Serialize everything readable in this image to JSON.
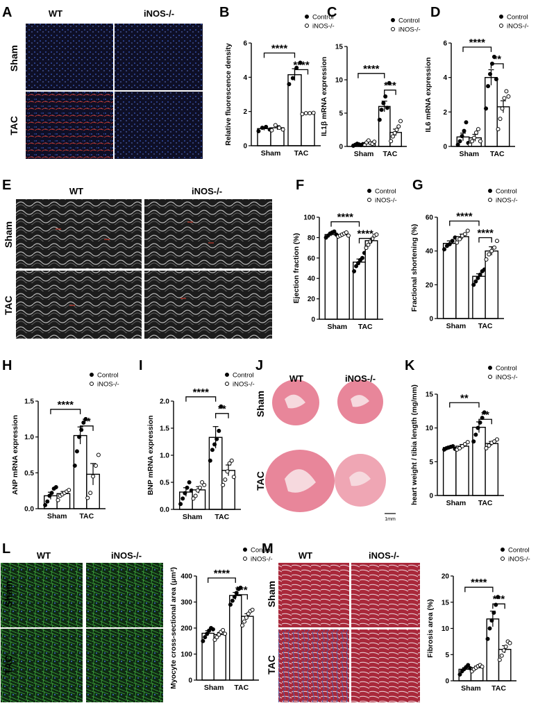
{
  "panels": [
    {
      "label": "A",
      "kind": "image"
    },
    {
      "label": "B",
      "kind": "chart"
    },
    {
      "label": "C",
      "kind": "chart"
    },
    {
      "label": "D",
      "kind": "chart"
    },
    {
      "label": "E",
      "kind": "image"
    },
    {
      "label": "F",
      "kind": "chart"
    },
    {
      "label": "G",
      "kind": "chart"
    },
    {
      "label": "H",
      "kind": "chart"
    },
    {
      "label": "I",
      "kind": "chart"
    },
    {
      "label": "J",
      "kind": "image"
    },
    {
      "label": "K",
      "kind": "chart"
    },
    {
      "label": "L",
      "kind": "image+chart"
    },
    {
      "label": "M",
      "kind": "image+chart"
    }
  ],
  "legend": {
    "control": "Control",
    "knockout": "iNOS-/-"
  },
  "image_panels": {
    "A": {
      "columns": [
        "WT",
        "iNOS-/-"
      ],
      "rows": [
        "Sham",
        "TAC"
      ],
      "style": "immunofluorescence",
      "colors": [
        "#0e0f26",
        "#3a5fd0",
        "#c2352a"
      ]
    },
    "E": {
      "columns": [
        "WT",
        "iNOS-/-"
      ],
      "rows": [
        "Sham",
        "TAC"
      ],
      "style": "echocardiography-mmode",
      "colors": [
        "#1a1a1a",
        "#bdbdbd",
        "#c0392b"
      ]
    },
    "J": {
      "columns": [
        "WT",
        "iNOS-/-"
      ],
      "rows": [
        "Sham",
        "TAC"
      ],
      "style": "heart-cross-section",
      "scale_bar": "1mm",
      "colors": [
        "#e8869a",
        "#f6d9de"
      ]
    },
    "L": {
      "columns": [
        "WT",
        "iNOS-/-"
      ],
      "rows": [
        "Sham",
        "TAC"
      ],
      "style": "wga-staining",
      "colors": [
        "#0f2a12",
        "#3fae3f",
        "#3b6fd6"
      ]
    },
    "M": {
      "columns": [
        "WT",
        "iNOS-/-"
      ],
      "rows": [
        "Sham",
        "TAC"
      ],
      "style": "masson-trichrome",
      "colors": [
        "#a9283a",
        "#e7c8cf",
        "#4a63b0"
      ]
    }
  },
  "chart_data": [
    {
      "panel": "B",
      "type": "bar",
      "categories": [
        "Sham",
        "TAC"
      ],
      "ylabel": "Relative fluorescence density",
      "ylim": [
        0,
        6
      ],
      "yticks": [
        0,
        2,
        4,
        6
      ],
      "grid": false,
      "legend_position": "top-right",
      "series": [
        {
          "name": "Control",
          "values": [
            1.0,
            4.15
          ],
          "err": [
            0.1,
            0.35
          ],
          "points": [
            [
              0.85,
              1.05,
              1.1,
              0.95
            ],
            [
              3.6,
              3.95,
              4.55,
              4.85
            ]
          ]
        },
        {
          "name": "iNOS-/-",
          "values": [
            1.05,
            1.9
          ],
          "err": [
            0.12,
            0.04
          ],
          "points": [
            [
              0.9,
              1.2,
              1.05,
              0.95
            ],
            [
              1.85,
              1.9,
              1.9,
              1.92
            ]
          ]
        }
      ],
      "significance": [
        {
          "from": [
            0,
            0
          ],
          "to": [
            1,
            0
          ],
          "label": "****"
        },
        {
          "from": [
            1,
            0
          ],
          "to": [
            1,
            1
          ],
          "label": "****"
        }
      ]
    },
    {
      "panel": "C",
      "type": "bar",
      "categories": [
        "Sham",
        "TAC"
      ],
      "ylabel": "IL1β mRNA expression",
      "ylim": [
        0,
        15
      ],
      "yticks": [
        0,
        5,
        10,
        15
      ],
      "grid": false,
      "legend_position": "top-right",
      "series": [
        {
          "name": "Control",
          "values": [
            0.3,
            6.0
          ],
          "err": [
            0.08,
            0.8
          ],
          "points": [
            [
              0.1,
              0.25,
              0.4,
              0.3,
              0.2,
              0.35
            ],
            [
              4.0,
              5.5,
              6.5,
              7.5,
              5.8,
              9.5
            ]
          ]
        },
        {
          "name": "iNOS-/-",
          "values": [
            0.55,
            2.1
          ],
          "err": [
            0.15,
            0.5
          ],
          "points": [
            [
              0.2,
              0.6,
              0.9,
              0.5,
              0.4,
              0.7
            ],
            [
              0.8,
              1.5,
              2.0,
              2.5,
              3.0,
              3.8
            ]
          ]
        }
      ],
      "significance": [
        {
          "from": [
            0,
            0
          ],
          "to": [
            1,
            0
          ],
          "label": "****"
        },
        {
          "from": [
            1,
            0
          ],
          "to": [
            1,
            1
          ],
          "label": "***"
        }
      ]
    },
    {
      "panel": "D",
      "type": "bar",
      "categories": [
        "Sham",
        "TAC"
      ],
      "ylabel": "IL6 mRNA expression",
      "ylim": [
        0,
        6
      ],
      "yticks": [
        0,
        2,
        4,
        6
      ],
      "grid": false,
      "legend_position": "top-right",
      "series": [
        {
          "name": "Control",
          "values": [
            0.55,
            4.0
          ],
          "err": [
            0.22,
            0.45
          ],
          "points": [
            [
              0.1,
              0.3,
              0.6,
              0.9,
              1.4,
              0.2
            ],
            [
              2.2,
              3.5,
              4.2,
              4.8,
              5.2,
              3.9
            ]
          ]
        },
        {
          "name": "iNOS-/-",
          "values": [
            0.5,
            2.3
          ],
          "err": [
            0.2,
            0.35
          ],
          "points": [
            [
              0.1,
              0.3,
              0.5,
              0.8,
              1.0,
              0.3
            ],
            [
              1.0,
              1.6,
              2.2,
              2.8,
              3.2,
              2.9
            ]
          ]
        }
      ],
      "significance": [
        {
          "from": [
            0,
            0
          ],
          "to": [
            1,
            0
          ],
          "label": "****"
        },
        {
          "from": [
            1,
            0
          ],
          "to": [
            1,
            1
          ],
          "label": "**"
        }
      ]
    },
    {
      "panel": "F",
      "type": "bar",
      "categories": [
        "Sham",
        "TAC"
      ],
      "ylabel": "Ejection fraction (%)",
      "ylim": [
        0,
        100
      ],
      "yticks": [
        0,
        20,
        40,
        60,
        80,
        100
      ],
      "grid": false,
      "legend_position": "top-right",
      "series": [
        {
          "name": "Control",
          "values": [
            83,
            56
          ],
          "err": [
            1.5,
            3
          ],
          "points": [
            [
              80,
              82,
              84,
              85,
              86,
              83
            ],
            [
              47,
              52,
              55,
              58,
              60,
              65
            ]
          ]
        },
        {
          "name": "iNOS-/-",
          "values": [
            83,
            77
          ],
          "err": [
            1.2,
            2
          ],
          "points": [
            [
              81,
              82,
              83,
              84,
              85,
              82
            ],
            [
              70,
              73,
              76,
              79,
              82,
              83
            ]
          ]
        }
      ],
      "significance": [
        {
          "from": [
            0,
            0
          ],
          "to": [
            1,
            0
          ],
          "label": "****"
        },
        {
          "from": [
            1,
            0
          ],
          "to": [
            1,
            1
          ],
          "label": "****"
        }
      ]
    },
    {
      "panel": "G",
      "type": "bar",
      "categories": [
        "Sham",
        "TAC"
      ],
      "ylabel": "Fractional shortening (%)",
      "ylim": [
        0,
        60
      ],
      "yticks": [
        0,
        20,
        40,
        60
      ],
      "grid": false,
      "legend_position": "top-right",
      "series": [
        {
          "name": "Control",
          "values": [
            44.5,
            25
          ],
          "err": [
            1.5,
            1.5
          ],
          "points": [
            [
              41,
              43,
              44,
              46,
              48
            ],
            [
              20,
              22,
              24,
              26,
              28,
              29
            ]
          ]
        },
        {
          "name": "iNOS-/-",
          "values": [
            48.5,
            40
          ],
          "err": [
            1.5,
            2.5
          ],
          "points": [
            [
              45,
              47,
              49,
              50,
              52
            ],
            [
              35,
              38,
              40,
              42,
              46
            ]
          ]
        }
      ],
      "significance": [
        {
          "from": [
            0,
            0
          ],
          "to": [
            1,
            0
          ],
          "label": "****"
        },
        {
          "from": [
            1,
            0
          ],
          "to": [
            1,
            1
          ],
          "label": "****"
        }
      ]
    },
    {
      "panel": "H",
      "type": "bar",
      "categories": [
        "Sham",
        "TAC"
      ],
      "ylabel": "ANP mRNA expression",
      "ylim": [
        0,
        1.5
      ],
      "yticks": [
        0,
        0.5,
        1.0,
        1.5
      ],
      "ytick_labels": [
        "0.0",
        "0.5",
        "1.0",
        "1.5"
      ],
      "grid": false,
      "legend_position": "top-right",
      "series": [
        {
          "name": "Control",
          "values": [
            0.18,
            1.02
          ],
          "err": [
            0.05,
            0.12
          ],
          "points": [
            [
              0.05,
              0.1,
              0.18,
              0.22,
              0.28,
              0.3
            ],
            [
              0.6,
              0.8,
              1.0,
              1.1,
              1.2,
              1.25
            ]
          ]
        },
        {
          "name": "iNOS-/-",
          "values": [
            0.21,
            0.48
          ],
          "err": [
            0.03,
            0.15
          ],
          "points": [
            [
              0.12,
              0.18,
              0.2,
              0.22,
              0.24,
              0.26
            ],
            [
              0.15,
              0.22,
              0.45,
              0.6,
              0.75
            ]
          ]
        }
      ],
      "significance": [
        {
          "from": [
            0,
            0
          ],
          "to": [
            1,
            0
          ],
          "label": "****"
        },
        {
          "from": [
            1,
            0
          ],
          "to": [
            1,
            1
          ],
          "label": "**"
        }
      ]
    },
    {
      "panel": "I",
      "type": "bar",
      "categories": [
        "Sham",
        "TAC"
      ],
      "ylabel": "BNP mRNA expression",
      "ylim": [
        0,
        2.0
      ],
      "yticks": [
        0,
        0.5,
        1.0,
        1.5,
        2.0
      ],
      "ytick_labels": [
        "0.0",
        "0.5",
        "1.0",
        "1.5",
        "2.0"
      ],
      "grid": false,
      "legend_position": "top-right",
      "series": [
        {
          "name": "Control",
          "values": [
            0.32,
            1.33
          ],
          "err": [
            0.08,
            0.2
          ],
          "points": [
            [
              0.1,
              0.2,
              0.3,
              0.4,
              0.5,
              0.35
            ],
            [
              0.9,
              1.1,
              1.2,
              1.3,
              1.45,
              1.9
            ]
          ]
        },
        {
          "name": "iNOS-/-",
          "values": [
            0.36,
            0.72
          ],
          "err": [
            0.06,
            0.1
          ],
          "points": [
            [
              0.2,
              0.25,
              0.35,
              0.4,
              0.5,
              0.45
            ],
            [
              0.45,
              0.55,
              0.7,
              0.85,
              0.9,
              0.6
            ]
          ]
        }
      ],
      "significance": [
        {
          "from": [
            0,
            0
          ],
          "to": [
            1,
            0
          ],
          "label": "****"
        },
        {
          "from": [
            1,
            0
          ],
          "to": [
            1,
            1
          ],
          "label": "**"
        }
      ]
    },
    {
      "panel": "K",
      "type": "bar",
      "categories": [
        "Sham",
        "TAC"
      ],
      "ylabel": "heart weight / tibia length (mg/mm)",
      "ylim": [
        0,
        15
      ],
      "yticks": [
        0,
        5,
        10,
        15
      ],
      "grid": false,
      "legend_position": "top-right",
      "series": [
        {
          "name": "Control",
          "values": [
            7.1,
            10.1
          ],
          "err": [
            0.2,
            0.8
          ],
          "points": [
            [
              6.8,
              7.0,
              7.1,
              7.2,
              7.3,
              6.9
            ],
            [
              8.0,
              9.0,
              10.0,
              10.8,
              11.5,
              12.3
            ]
          ]
        },
        {
          "name": "iNOS-/-",
          "values": [
            7.3,
            7.7
          ],
          "err": [
            0.25,
            0.3
          ],
          "points": [
            [
              6.8,
              7.0,
              7.3,
              7.6,
              7.9
            ],
            [
              7.0,
              7.4,
              7.8,
              8.0,
              8.3
            ]
          ]
        }
      ],
      "significance": [
        {
          "from": [
            0,
            0
          ],
          "to": [
            1,
            0
          ],
          "label": "**"
        },
        {
          "from": [
            1,
            0
          ],
          "to": [
            1,
            1
          ],
          "label": "**"
        }
      ]
    },
    {
      "panel": "L",
      "type": "bar",
      "categories": [
        "Sham",
        "TAC"
      ],
      "ylabel": "Myocyte cross-sectional area (μm²)",
      "ylim": [
        0,
        400
      ],
      "yticks": [
        0,
        100,
        200,
        300,
        400
      ],
      "grid": false,
      "legend_position": "top-right",
      "series": [
        {
          "name": "Control",
          "values": [
            180,
            325
          ],
          "err": [
            10,
            12
          ],
          "points": [
            [
              150,
              165,
              178,
              190,
              200,
              195
            ],
            [
              290,
              305,
              320,
              335,
              350,
              355
            ]
          ]
        },
        {
          "name": "iNOS-/-",
          "values": [
            175,
            245
          ],
          "err": [
            8,
            10
          ],
          "points": [
            [
              155,
              165,
              175,
              185,
              192,
              178
            ],
            [
              210,
              225,
              240,
              255,
              265,
              270
            ]
          ]
        }
      ],
      "significance": [
        {
          "from": [
            0,
            0
          ],
          "to": [
            1,
            0
          ],
          "label": "****"
        },
        {
          "from": [
            1,
            0
          ],
          "to": [
            1,
            1
          ],
          "label": "***"
        }
      ]
    },
    {
      "panel": "M",
      "type": "bar",
      "categories": [
        "Sham",
        "TAC"
      ],
      "ylabel": "Fibrosis area (%)",
      "ylim": [
        0,
        20
      ],
      "yticks": [
        0,
        5,
        10,
        15,
        20
      ],
      "grid": false,
      "legend_position": "top-right",
      "series": [
        {
          "name": "Control",
          "values": [
            2.2,
            11.8
          ],
          "err": [
            0.3,
            1.5
          ],
          "points": [
            [
              1.2,
              1.8,
              2.2,
              2.6,
              3.0,
              2.4
            ],
            [
              8.0,
              10.0,
              11.5,
              13.0,
              14.5,
              16.0
            ]
          ]
        },
        {
          "name": "iNOS-/-",
          "values": [
            2.5,
            6.0
          ],
          "err": [
            0.3,
            0.7
          ],
          "points": [
            [
              1.8,
              2.2,
              2.5,
              2.8,
              3.0,
              2.7
            ],
            [
              4.0,
              4.8,
              5.8,
              6.5,
              7.5,
              7.2
            ]
          ]
        }
      ],
      "significance": [
        {
          "from": [
            0,
            0
          ],
          "to": [
            1,
            0
          ],
          "label": "****"
        },
        {
          "from": [
            1,
            0
          ],
          "to": [
            1,
            1
          ],
          "label": "***"
        }
      ]
    }
  ]
}
